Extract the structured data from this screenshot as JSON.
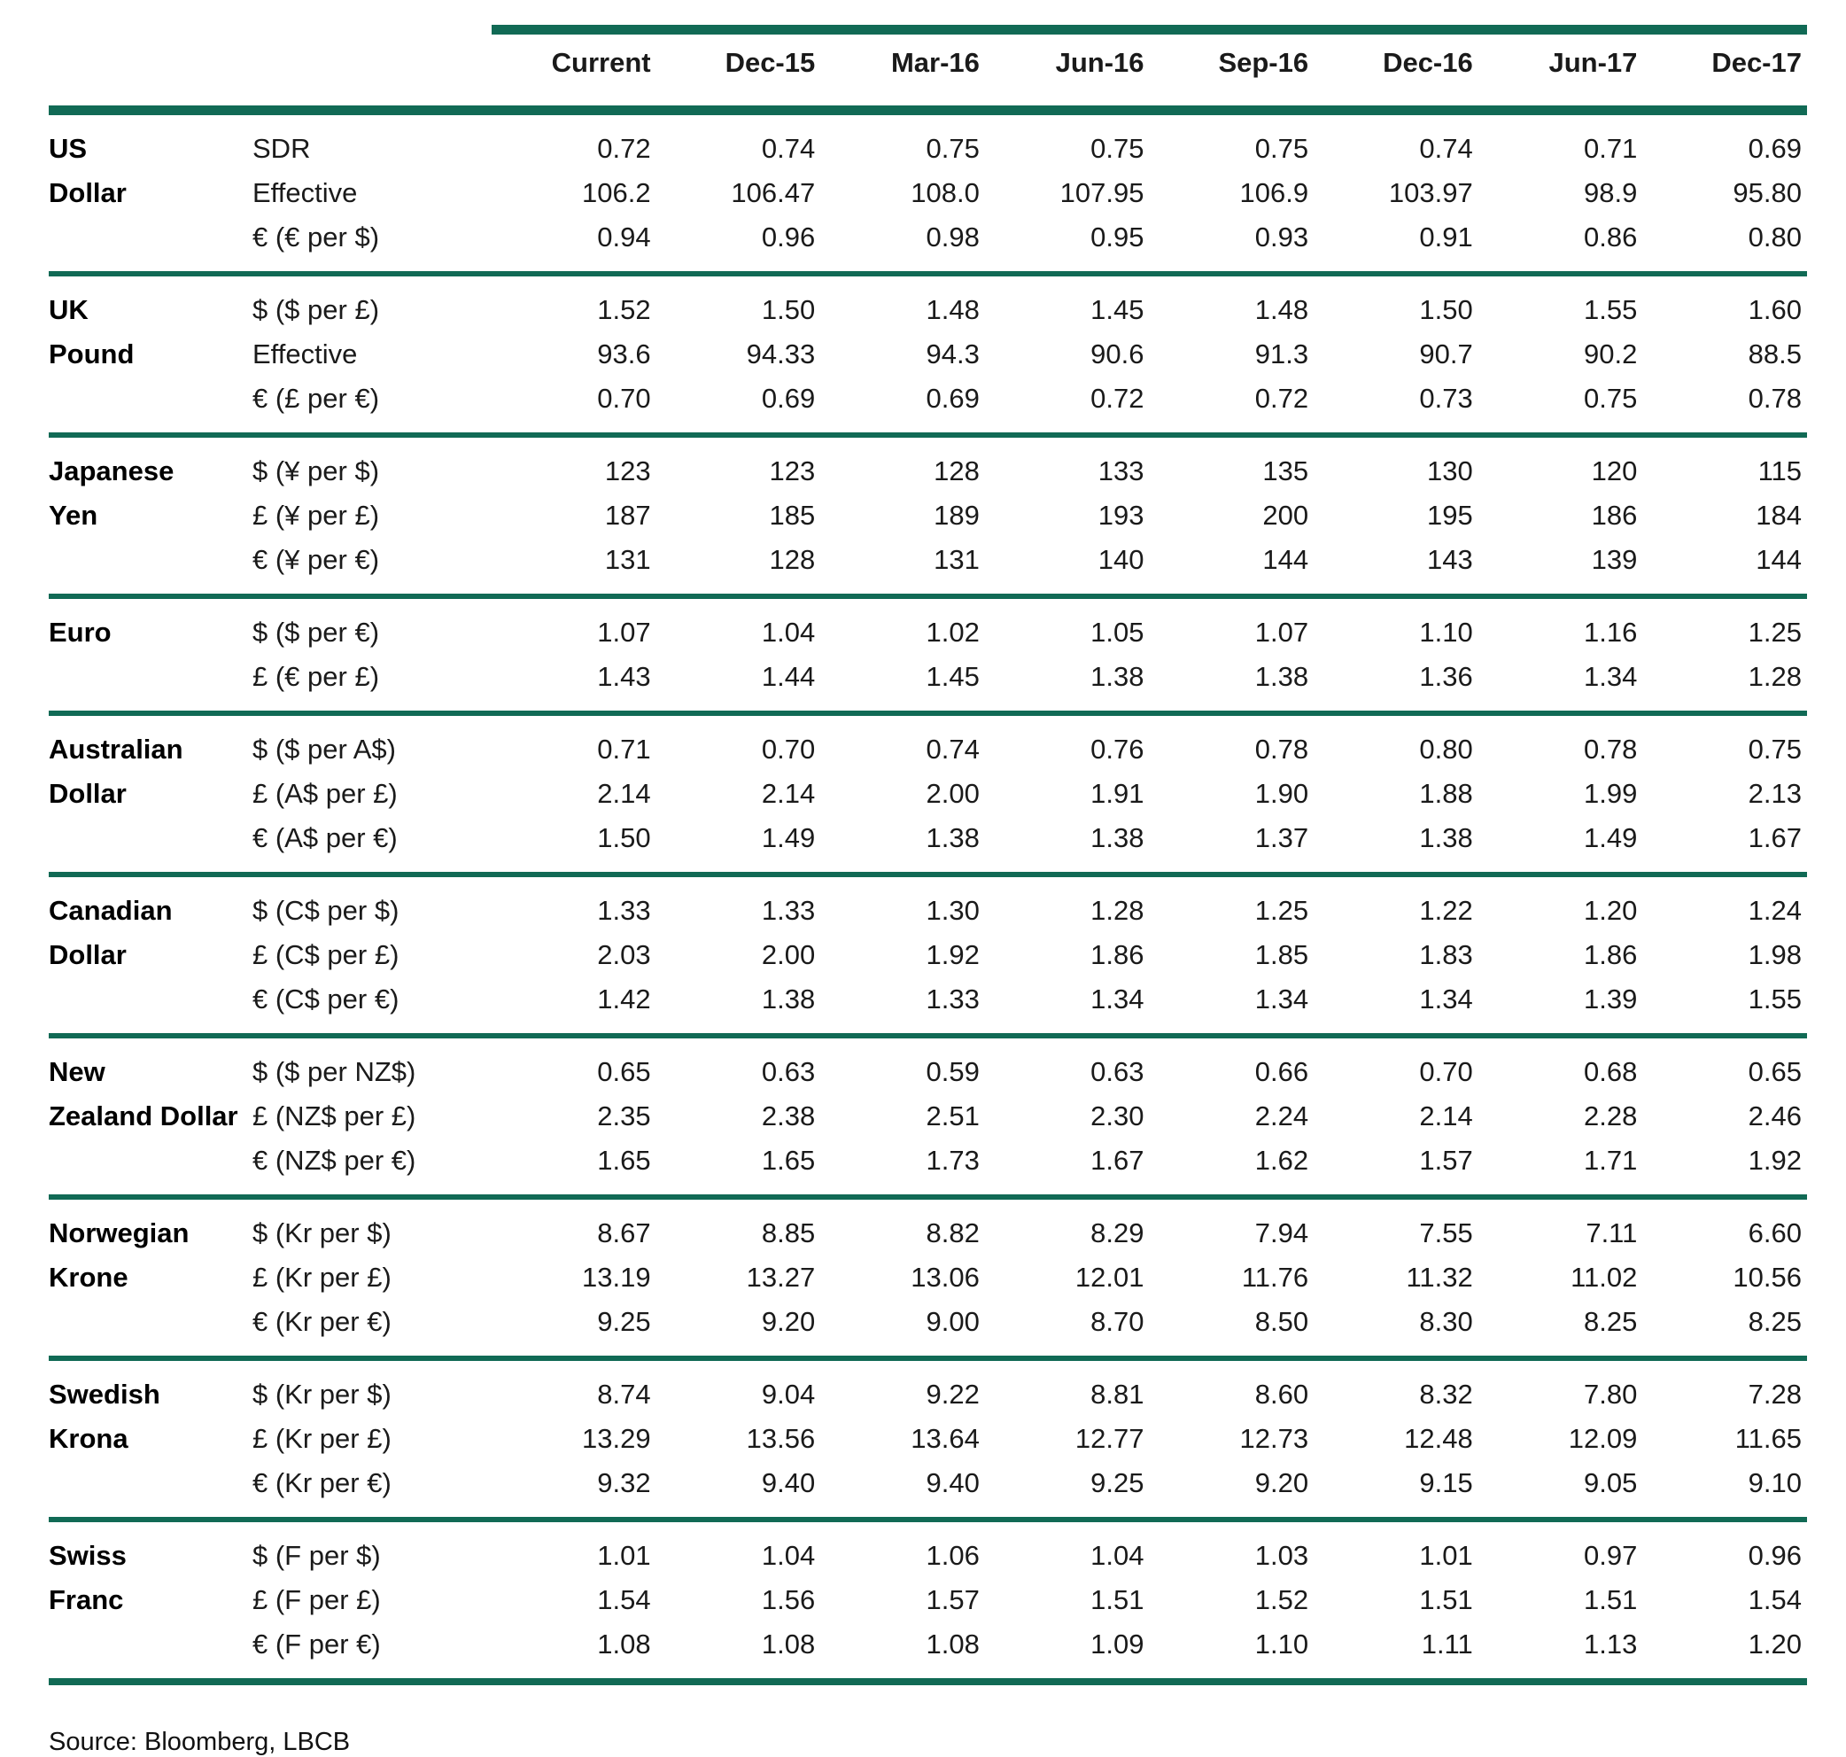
{
  "colors": {
    "accent_green": "#116a55"
  },
  "table": {
    "columns": [
      "Current",
      "Dec-15",
      "Mar-16",
      "Jun-16",
      "Sep-16",
      "Dec-16",
      "Jun-17",
      "Dec-17"
    ],
    "groups": [
      {
        "currency": "US Dollar",
        "lines": [
          "US",
          "Dollar"
        ],
        "rows": [
          {
            "label": "SDR",
            "values": [
              "0.72",
              "0.74",
              "0.75",
              "0.75",
              "0.75",
              "0.74",
              "0.71",
              "0.69"
            ]
          },
          {
            "label": "Effective",
            "values": [
              "106.2",
              "106.47",
              "108.0",
              "107.95",
              "106.9",
              "103.97",
              "98.9",
              "95.80"
            ]
          },
          {
            "label": "€ (€ per $)",
            "values": [
              "0.94",
              "0.96",
              "0.98",
              "0.95",
              "0.93",
              "0.91",
              "0.86",
              "0.80"
            ]
          }
        ]
      },
      {
        "currency": "UK Pound",
        "lines": [
          "UK",
          "Pound"
        ],
        "rows": [
          {
            "label": "$ ($ per £)",
            "values": [
              "1.52",
              "1.50",
              "1.48",
              "1.45",
              "1.48",
              "1.50",
              "1.55",
              "1.60"
            ]
          },
          {
            "label": "Effective",
            "values": [
              "93.6",
              "94.33",
              "94.3",
              "90.6",
              "91.3",
              "90.7",
              "90.2",
              "88.5"
            ]
          },
          {
            "label": "€ (£ per €)",
            "values": [
              "0.70",
              "0.69",
              "0.69",
              "0.72",
              "0.72",
              "0.73",
              "0.75",
              "0.78"
            ]
          }
        ]
      },
      {
        "currency": "Japanese Yen",
        "lines": [
          "Japanese",
          "Yen"
        ],
        "rows": [
          {
            "label": "$ (¥ per $)",
            "values": [
              "123",
              "123",
              "128",
              "133",
              "135",
              "130",
              "120",
              "115"
            ]
          },
          {
            "label": "£ (¥ per £)",
            "values": [
              "187",
              "185",
              "189",
              "193",
              "200",
              "195",
              "186",
              "184"
            ]
          },
          {
            "label": "€ (¥ per €)",
            "values": [
              "131",
              "128",
              "131",
              "140",
              "144",
              "143",
              "139",
              "144"
            ]
          }
        ]
      },
      {
        "currency": "Euro",
        "lines": [
          "Euro"
        ],
        "rows": [
          {
            "label": "$ ($ per €)",
            "values": [
              "1.07",
              "1.04",
              "1.02",
              "1.05",
              "1.07",
              "1.10",
              "1.16",
              "1.25"
            ]
          },
          {
            "label": "£ (€ per £)",
            "values": [
              "1.43",
              "1.44",
              "1.45",
              "1.38",
              "1.38",
              "1.36",
              "1.34",
              "1.28"
            ]
          }
        ]
      },
      {
        "currency": "Australian Dollar",
        "lines": [
          "Australian",
          "Dollar"
        ],
        "rows": [
          {
            "label": "$ ($ per A$)",
            "values": [
              "0.71",
              "0.70",
              "0.74",
              "0.76",
              "0.78",
              "0.80",
              "0.78",
              "0.75"
            ]
          },
          {
            "label": "£ (A$ per £)",
            "values": [
              "2.14",
              "2.14",
              "2.00",
              "1.91",
              "1.90",
              "1.88",
              "1.99",
              "2.13"
            ]
          },
          {
            "label": "€ (A$ per €)",
            "values": [
              "1.50",
              "1.49",
              "1.38",
              "1.38",
              "1.37",
              "1.38",
              "1.49",
              "1.67"
            ]
          }
        ]
      },
      {
        "currency": "Canadian Dollar",
        "lines": [
          "Canadian",
          "Dollar"
        ],
        "rows": [
          {
            "label": "$ (C$ per $)",
            "values": [
              "1.33",
              "1.33",
              "1.30",
              "1.28",
              "1.25",
              "1.22",
              "1.20",
              "1.24"
            ]
          },
          {
            "label": "£ (C$ per £)",
            "values": [
              "2.03",
              "2.00",
              "1.92",
              "1.86",
              "1.85",
              "1.83",
              "1.86",
              "1.98"
            ]
          },
          {
            "label": "€ (C$ per €)",
            "values": [
              "1.42",
              "1.38",
              "1.33",
              "1.34",
              "1.34",
              "1.34",
              "1.39",
              "1.55"
            ]
          }
        ]
      },
      {
        "currency": "New Zealand Dollar",
        "lines": [
          "New",
          "Zealand Dollar"
        ],
        "rows": [
          {
            "label": "$ ($ per NZ$)",
            "values": [
              "0.65",
              "0.63",
              "0.59",
              "0.63",
              "0.66",
              "0.70",
              "0.68",
              "0.65"
            ]
          },
          {
            "label": "£ (NZ$ per £)",
            "values": [
              "2.35",
              "2.38",
              "2.51",
              "2.30",
              "2.24",
              "2.14",
              "2.28",
              "2.46"
            ]
          },
          {
            "label": "€ (NZ$ per €)",
            "values": [
              "1.65",
              "1.65",
              "1.73",
              "1.67",
              "1.62",
              "1.57",
              "1.71",
              "1.92"
            ]
          }
        ]
      },
      {
        "currency": "Norwegian Krone",
        "lines": [
          "Norwegian",
          "Krone"
        ],
        "rows": [
          {
            "label": "$ (Kr per $)",
            "values": [
              "8.67",
              "8.85",
              "8.82",
              "8.29",
              "7.94",
              "7.55",
              "7.11",
              "6.60"
            ]
          },
          {
            "label": "£ (Kr per £)",
            "values": [
              "13.19",
              "13.27",
              "13.06",
              "12.01",
              "11.76",
              "11.32",
              "11.02",
              "10.56"
            ]
          },
          {
            "label": "€ (Kr per €)",
            "values": [
              "9.25",
              "9.20",
              "9.00",
              "8.70",
              "8.50",
              "8.30",
              "8.25",
              "8.25"
            ]
          }
        ]
      },
      {
        "currency": "Swedish Krona",
        "lines": [
          "Swedish",
          "Krona"
        ],
        "rows": [
          {
            "label": "$ (Kr per $)",
            "values": [
              "8.74",
              "9.04",
              "9.22",
              "8.81",
              "8.60",
              "8.32",
              "7.80",
              "7.28"
            ]
          },
          {
            "label": "£ (Kr per £)",
            "values": [
              "13.29",
              "13.56",
              "13.64",
              "12.77",
              "12.73",
              "12.48",
              "12.09",
              "11.65"
            ]
          },
          {
            "label": "€ (Kr per €)",
            "values": [
              "9.32",
              "9.40",
              "9.40",
              "9.25",
              "9.20",
              "9.15",
              "9.05",
              "9.10"
            ]
          }
        ]
      },
      {
        "currency": "Swiss Franc",
        "lines": [
          "Swiss",
          "Franc"
        ],
        "rows": [
          {
            "label": "$ (F per $)",
            "values": [
              "1.01",
              "1.04",
              "1.06",
              "1.04",
              "1.03",
              "1.01",
              "0.97",
              "0.96"
            ]
          },
          {
            "label": "£ (F per £)",
            "values": [
              "1.54",
              "1.56",
              "1.57",
              "1.51",
              "1.52",
              "1.51",
              "1.51",
              "1.54"
            ]
          },
          {
            "label": "€ (F per €)",
            "values": [
              "1.08",
              "1.08",
              "1.08",
              "1.09",
              "1.10",
              "1.11",
              "1.13",
              "1.20"
            ]
          }
        ]
      }
    ],
    "source": "Source: Bloomberg, LBCB"
  }
}
